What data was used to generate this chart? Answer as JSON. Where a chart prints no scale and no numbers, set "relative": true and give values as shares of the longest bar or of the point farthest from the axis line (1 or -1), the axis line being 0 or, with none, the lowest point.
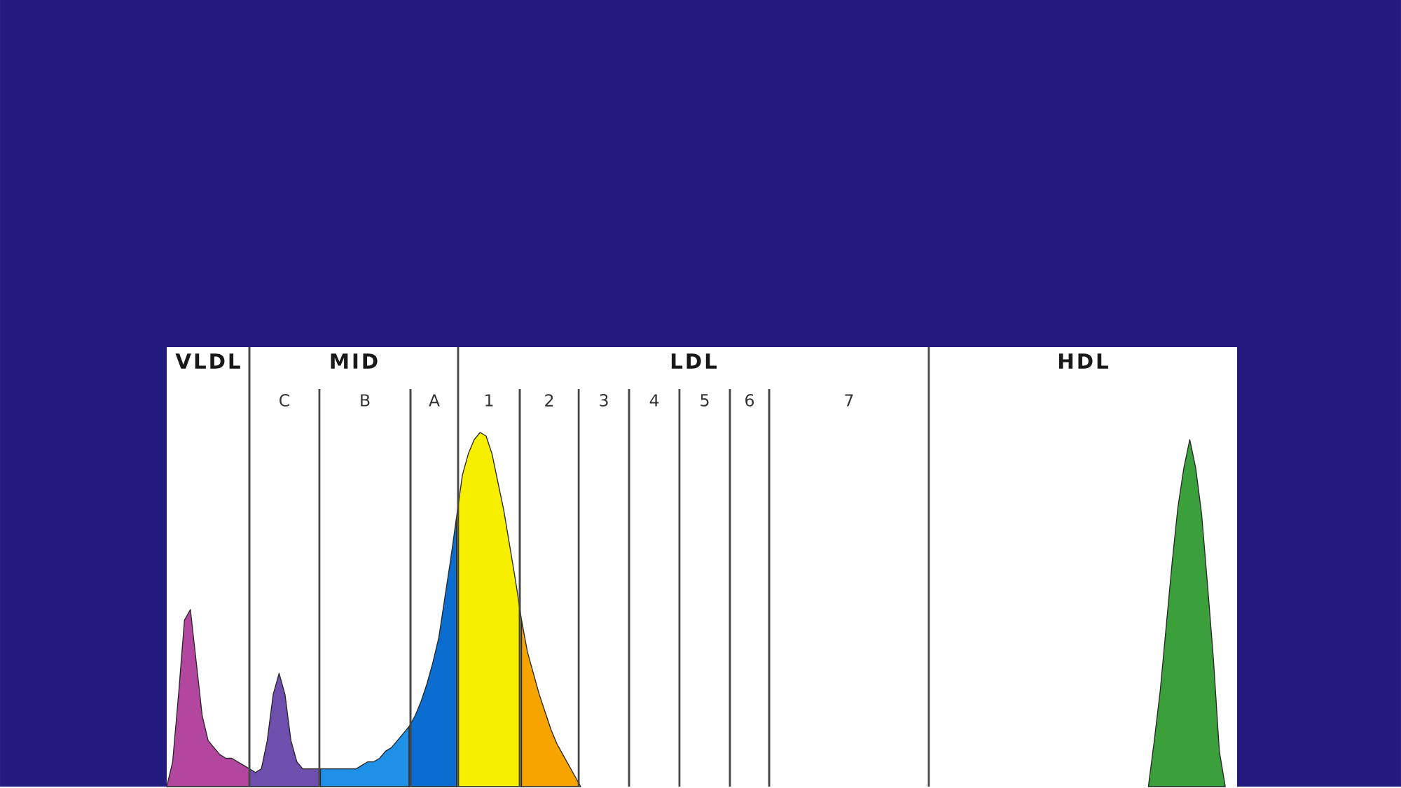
{
  "chart_data": {
    "type": "area",
    "relative": true,
    "categories": [
      null,
      null,
      null,
      null,
      null,
      null,
      null,
      null,
      null,
      null,
      null,
      null,
      null,
      null,
      null,
      null,
      null,
      null,
      null,
      null,
      null,
      null,
      null,
      null,
      null,
      null,
      null,
      null,
      null,
      null,
      null,
      null,
      null,
      null,
      null,
      null,
      null,
      null,
      null,
      null,
      null,
      null,
      null,
      null,
      null,
      null,
      null,
      null,
      null,
      null,
      null,
      null,
      null,
      null,
      null,
      null,
      null,
      null,
      null,
      null,
      null,
      null,
      null,
      null,
      null,
      null,
      null,
      null,
      null,
      null,
      null,
      null,
      null,
      null,
      null,
      null,
      null,
      null,
      null,
      null,
      null,
      null,
      null,
      null,
      null,
      null,
      null,
      null,
      null,
      null,
      null,
      null,
      null,
      null,
      null,
      null,
      null,
      null,
      null,
      null,
      null,
      null,
      null,
      null,
      null,
      null,
      null,
      null,
      null,
      null,
      null,
      null,
      null,
      null,
      null,
      null,
      null,
      null,
      null,
      null,
      null,
      null,
      null,
      null,
      null,
      null,
      null,
      null,
      null,
      null,
      null,
      null,
      null,
      null,
      null,
      null,
      null,
      null,
      null,
      null,
      null,
      null,
      null,
      null,
      null,
      null,
      null,
      null,
      null,
      null,
      null,
      null,
      null,
      null,
      null,
      null,
      null,
      null,
      null,
      null,
      null,
      null,
      null,
      null,
      null,
      null,
      null,
      null,
      null,
      null,
      null,
      null,
      null,
      null,
      null,
      null,
      null,
      null,
      null,
      null,
      null,
      null
    ],
    "series": [
      {
        "color": "#b3479f",
        "values": [
          0,
          0.07,
          0.26,
          0.47,
          0.5,
          0.35,
          0.2,
          0.13,
          0.11,
          0.09,
          0.08,
          0.08,
          0.07,
          0.06,
          0.05,
          null,
          null,
          null,
          null,
          null,
          null,
          null,
          null,
          null,
          null,
          null,
          null,
          null,
          null,
          null,
          null,
          null,
          null,
          null,
          null,
          null,
          null,
          null,
          null,
          null,
          null,
          null,
          null,
          null,
          null,
          null,
          null,
          null,
          null,
          null,
          null,
          null,
          null,
          null,
          null,
          null,
          null,
          null,
          null,
          null,
          null,
          null,
          null,
          null,
          null,
          null,
          null,
          null,
          null,
          null,
          null,
          null,
          null,
          null,
          null,
          null,
          null,
          null,
          null,
          null,
          null,
          null,
          null,
          null,
          null,
          null,
          null,
          null,
          null,
          null,
          null,
          null,
          null,
          null,
          null,
          null,
          null,
          null,
          null,
          null,
          null,
          null,
          null,
          null,
          null,
          null,
          null,
          null,
          null,
          null,
          null,
          null,
          null,
          null,
          null,
          null,
          null,
          null,
          null,
          null,
          null,
          null,
          null,
          null,
          null,
          null,
          null,
          null,
          null,
          null,
          null,
          null,
          null,
          null,
          null,
          null,
          null,
          null,
          null,
          null,
          null,
          null,
          null,
          null,
          null,
          null,
          null,
          null,
          null,
          null,
          null,
          null,
          null,
          null,
          null,
          null,
          null,
          null,
          null,
          null,
          null,
          null,
          null,
          null,
          null,
          null,
          null,
          null,
          null,
          null,
          null,
          null,
          null,
          null,
          null,
          null,
          null,
          null,
          null,
          null,
          null,
          null
        ]
      },
      {
        "color": "#6f4fae",
        "values": [
          null,
          null,
          null,
          null,
          null,
          null,
          null,
          null,
          null,
          null,
          null,
          null,
          null,
          null,
          0.05,
          0.04,
          0.05,
          0.13,
          0.26,
          0.32,
          0.26,
          0.13,
          0.07,
          0.05,
          0.05,
          0.05,
          0.05,
          null,
          null,
          null,
          null,
          null,
          null,
          null,
          null,
          null,
          null,
          null,
          null,
          null,
          null,
          null,
          null,
          null,
          null,
          null,
          null,
          null,
          null,
          null,
          null,
          null,
          null,
          null,
          null,
          null,
          null,
          null,
          null,
          null,
          null,
          null,
          null,
          null,
          null,
          null,
          null,
          null,
          null,
          null,
          null,
          null,
          null,
          null,
          null,
          null,
          null,
          null,
          null,
          null,
          null,
          null,
          null,
          null,
          null,
          null,
          null,
          null,
          null,
          null,
          null,
          null,
          null,
          null,
          null,
          null,
          null,
          null,
          null,
          null,
          null,
          null,
          null,
          null,
          null,
          null,
          null,
          null,
          null,
          null,
          null,
          null,
          null,
          null,
          null,
          null,
          null,
          null,
          null,
          null,
          null,
          null,
          null,
          null,
          null,
          null,
          null,
          null,
          null,
          null,
          null,
          null,
          null,
          null,
          null,
          null,
          null,
          null,
          null,
          null,
          null,
          null,
          null,
          null,
          null,
          null,
          null,
          null,
          null,
          null,
          null,
          null,
          null,
          null,
          null,
          null,
          null,
          null,
          null,
          null,
          null,
          null,
          null,
          null,
          null,
          null,
          null,
          null,
          null,
          null,
          null,
          null,
          null,
          null,
          null,
          null,
          null,
          null,
          null,
          null,
          null,
          null
        ]
      },
      {
        "color": "#1e90e6",
        "values": [
          null,
          null,
          null,
          null,
          null,
          null,
          null,
          null,
          null,
          null,
          null,
          null,
          null,
          null,
          null,
          null,
          null,
          null,
          null,
          null,
          null,
          null,
          null,
          null,
          null,
          null,
          0.05,
          0.05,
          0.05,
          0.05,
          0.05,
          0.05,
          0.05,
          0.06,
          0.07,
          0.07,
          0.08,
          0.1,
          0.11,
          0.13,
          0.15,
          0.17,
          null,
          null,
          null,
          null,
          null,
          null,
          null,
          null,
          null,
          null,
          null,
          null,
          null,
          null,
          null,
          null,
          null,
          null,
          null,
          null,
          null,
          null,
          null,
          null,
          null,
          null,
          null,
          null,
          null,
          null,
          null,
          null,
          null,
          null,
          null,
          null,
          null,
          null,
          null,
          null,
          null,
          null,
          null,
          null,
          null,
          null,
          null,
          null,
          null,
          null,
          null,
          null,
          null,
          null,
          null,
          null,
          null,
          null,
          null,
          null,
          null,
          null,
          null,
          null,
          null,
          null,
          null,
          null,
          null,
          null,
          null,
          null,
          null,
          null,
          null,
          null,
          null,
          null,
          null,
          null,
          null,
          null,
          null,
          null,
          null,
          null,
          null,
          null,
          null,
          null,
          null,
          null,
          null,
          null,
          null,
          null,
          null,
          null,
          null,
          null,
          null,
          null,
          null,
          null,
          null,
          null,
          null,
          null,
          null,
          null,
          null,
          null,
          null,
          null,
          null,
          null,
          null,
          null,
          null,
          null,
          null,
          null,
          null,
          null,
          null,
          null,
          null,
          null,
          null,
          null,
          null,
          null,
          null,
          null,
          null,
          null,
          null,
          null,
          null,
          null
        ]
      },
      {
        "color": "#0b6dcf",
        "values": [
          null,
          null,
          null,
          null,
          null,
          null,
          null,
          null,
          null,
          null,
          null,
          null,
          null,
          null,
          null,
          null,
          null,
          null,
          null,
          null,
          null,
          null,
          null,
          null,
          null,
          null,
          null,
          null,
          null,
          null,
          null,
          null,
          null,
          null,
          null,
          null,
          null,
          null,
          null,
          null,
          null,
          0.17,
          0.2,
          0.24,
          0.29,
          0.35,
          0.42,
          0.53,
          0.64,
          0.76,
          null,
          null,
          null,
          null,
          null,
          null,
          null,
          null,
          null,
          null,
          null,
          null,
          null,
          null,
          null,
          null,
          null,
          null,
          null,
          null,
          null,
          null,
          null,
          null,
          null,
          null,
          null,
          null,
          null,
          null,
          null,
          null,
          null,
          null,
          null,
          null,
          null,
          null,
          null,
          null,
          null,
          null,
          null,
          null,
          null,
          null,
          null,
          null,
          null,
          null,
          null,
          null,
          null,
          null,
          null,
          null,
          null,
          null,
          null,
          null,
          null,
          null,
          null,
          null,
          null,
          null,
          null,
          null,
          null,
          null,
          null,
          null,
          null,
          null,
          null,
          null,
          null,
          null,
          null,
          null,
          null,
          null,
          null,
          null,
          null,
          null,
          null,
          null,
          null,
          null,
          null,
          null,
          null,
          null,
          null,
          null,
          null,
          null,
          null,
          null,
          null,
          null,
          null,
          null,
          null,
          null,
          null,
          null,
          null,
          null,
          null,
          null,
          null,
          null,
          null,
          null,
          null,
          null,
          null,
          null,
          null,
          null,
          null,
          null,
          null,
          null,
          null,
          null,
          null,
          null,
          null,
          null
        ]
      },
      {
        "color": "#f6ef00",
        "values": [
          null,
          null,
          null,
          null,
          null,
          null,
          null,
          null,
          null,
          null,
          null,
          null,
          null,
          null,
          null,
          null,
          null,
          null,
          null,
          null,
          null,
          null,
          null,
          null,
          null,
          null,
          null,
          null,
          null,
          null,
          null,
          null,
          null,
          null,
          null,
          null,
          null,
          null,
          null,
          null,
          null,
          null,
          null,
          null,
          null,
          null,
          null,
          null,
          null,
          0.76,
          0.88,
          0.94,
          0.98,
          1,
          0.99,
          0.94,
          0.86,
          0.78,
          0.68,
          0.58,
          0.47,
          null,
          null,
          null,
          null,
          null,
          null,
          null,
          null,
          null,
          null,
          null,
          null,
          null,
          null,
          null,
          null,
          null,
          null,
          null,
          null,
          null,
          null,
          null,
          null,
          null,
          null,
          null,
          null,
          null,
          null,
          null,
          null,
          null,
          null,
          null,
          null,
          null,
          null,
          null,
          null,
          null,
          null,
          null,
          null,
          null,
          null,
          null,
          null,
          null,
          null,
          null,
          null,
          null,
          null,
          null,
          null,
          null,
          null,
          null,
          null,
          null,
          null,
          null,
          null,
          null,
          null,
          null,
          null,
          null,
          null,
          null,
          null,
          null,
          null,
          null,
          null,
          null,
          null,
          null,
          null,
          null,
          null,
          null,
          null,
          null,
          null,
          null,
          null,
          null,
          null,
          null,
          null,
          null,
          null,
          null,
          null,
          null,
          null,
          null,
          null,
          null,
          null,
          null,
          null,
          null,
          null,
          null,
          null,
          null,
          null,
          null,
          null,
          null,
          null,
          null,
          null,
          null,
          null,
          null,
          null,
          null
        ]
      },
      {
        "color": "#f8a400",
        "values": [
          null,
          null,
          null,
          null,
          null,
          null,
          null,
          null,
          null,
          null,
          null,
          null,
          null,
          null,
          null,
          null,
          null,
          null,
          null,
          null,
          null,
          null,
          null,
          null,
          null,
          null,
          null,
          null,
          null,
          null,
          null,
          null,
          null,
          null,
          null,
          null,
          null,
          null,
          null,
          null,
          null,
          null,
          null,
          null,
          null,
          null,
          null,
          null,
          null,
          null,
          null,
          null,
          null,
          null,
          null,
          null,
          null,
          null,
          null,
          null,
          0.47,
          0.38,
          0.32,
          0.26,
          0.21,
          0.16,
          0.12,
          0.09,
          0.06,
          0.03,
          0,
          null,
          null,
          null,
          null,
          null,
          null,
          null,
          null,
          null,
          null,
          null,
          null,
          null,
          null,
          null,
          null,
          null,
          null,
          null,
          null,
          null,
          null,
          null,
          null,
          null,
          null,
          null,
          null,
          null,
          null,
          null,
          null,
          null,
          null,
          null,
          null,
          null,
          null,
          null,
          null,
          null,
          null,
          null,
          null,
          null,
          null,
          null,
          null,
          null,
          null,
          null,
          null,
          null,
          null,
          null,
          null,
          null,
          null,
          null,
          null,
          null,
          null,
          null,
          null,
          null,
          null,
          null,
          null,
          null,
          null,
          null,
          null,
          null,
          null,
          null,
          null,
          null,
          null,
          null,
          null,
          null,
          null,
          null,
          null,
          null,
          null,
          null,
          null,
          null,
          null,
          null,
          null,
          null,
          null,
          null,
          null,
          null,
          null,
          null,
          null,
          null,
          null,
          null,
          null,
          null,
          null,
          null,
          null,
          null,
          null,
          null
        ]
      },
      {
        "color": "#3b9f3b",
        "values": [
          null,
          null,
          null,
          null,
          null,
          null,
          null,
          null,
          null,
          null,
          null,
          null,
          null,
          null,
          null,
          null,
          null,
          null,
          null,
          null,
          null,
          null,
          null,
          null,
          null,
          null,
          null,
          null,
          null,
          null,
          null,
          null,
          null,
          null,
          null,
          null,
          null,
          null,
          null,
          null,
          null,
          null,
          null,
          null,
          null,
          null,
          null,
          null,
          null,
          null,
          null,
          null,
          null,
          null,
          null,
          null,
          null,
          null,
          null,
          null,
          null,
          null,
          null,
          null,
          null,
          null,
          null,
          null,
          null,
          null,
          null,
          null,
          null,
          null,
          null,
          null,
          null,
          null,
          null,
          null,
          null,
          null,
          null,
          null,
          null,
          null,
          null,
          null,
          null,
          null,
          null,
          null,
          null,
          null,
          null,
          null,
          null,
          null,
          null,
          null,
          null,
          null,
          null,
          null,
          null,
          null,
          null,
          null,
          null,
          null,
          null,
          null,
          null,
          null,
          null,
          null,
          null,
          null,
          null,
          null,
          null,
          null,
          null,
          null,
          null,
          null,
          null,
          null,
          null,
          null,
          null,
          null,
          null,
          null,
          null,
          null,
          null,
          null,
          null,
          null,
          null,
          null,
          null,
          null,
          null,
          null,
          null,
          null,
          null,
          null,
          null,
          null,
          null,
          null,
          null,
          null,
          null,
          null,
          null,
          null,
          null,
          null,
          null,
          null,
          null,
          null,
          0,
          0.13,
          0.27,
          0.45,
          0.63,
          0.79,
          0.9,
          0.98,
          0.9,
          0.77,
          0.57,
          0.36,
          0.1,
          0,
          null,
          null
        ]
      }
    ],
    "annotations": [
      "VLDL",
      "MID",
      "LDL",
      "HDL",
      "C",
      "B",
      "A",
      "1",
      "2",
      "3",
      "4",
      "5",
      "6",
      "7"
    ]
  }
}
